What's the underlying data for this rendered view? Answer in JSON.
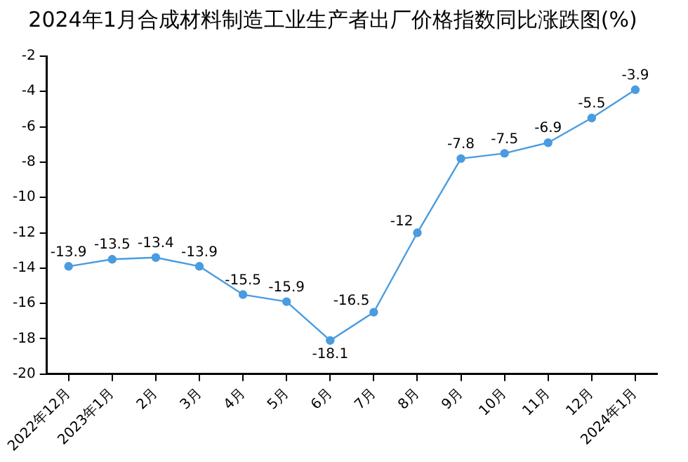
{
  "chart_data": {
    "type": "line",
    "title": "2024年1月合成材料制造工业生产者出厂价格指数同比涨跌图(%)",
    "categories": [
      "2022年12月",
      "2023年1月",
      "2月",
      "3月",
      "4月",
      "5月",
      "6月",
      "7月",
      "8月",
      "9月",
      "10月",
      "11月",
      "12月",
      "2024年1月"
    ],
    "series": [
      {
        "color": "#4a9be0",
        "values": [
          -13.9,
          -13.5,
          -13.4,
          -13.9,
          -15.5,
          -15.9,
          -18.1,
          -16.5,
          -12,
          -7.8,
          -7.5,
          -6.9,
          -5.5,
          -3.9
        ]
      }
    ],
    "ylim": [
      -20,
      -2
    ],
    "yticks": [
      -20,
      -18,
      -16,
      -14,
      -12,
      -10,
      -8,
      -6,
      -4,
      -2
    ],
    "grid": false,
    "legend": false,
    "marker": "circle",
    "line_style": "solid",
    "data_labels": true
  }
}
